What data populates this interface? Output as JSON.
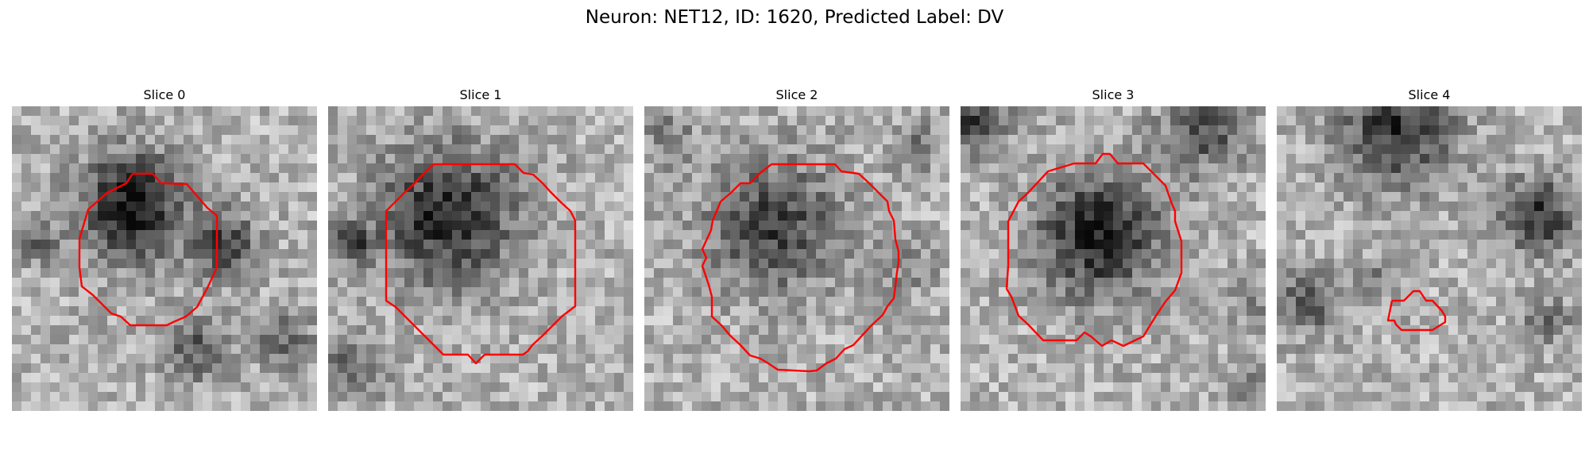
{
  "figure": {
    "title": "Neuron: NET12, ID: 1620, Predicted Label: DV",
    "contour_color": "#ff0000"
  },
  "panels": [
    {
      "label": "Slice 0"
    },
    {
      "label": "Slice 1"
    },
    {
      "label": "Slice 2"
    },
    {
      "label": "Slice 3"
    },
    {
      "label": "Slice 4"
    }
  ]
}
